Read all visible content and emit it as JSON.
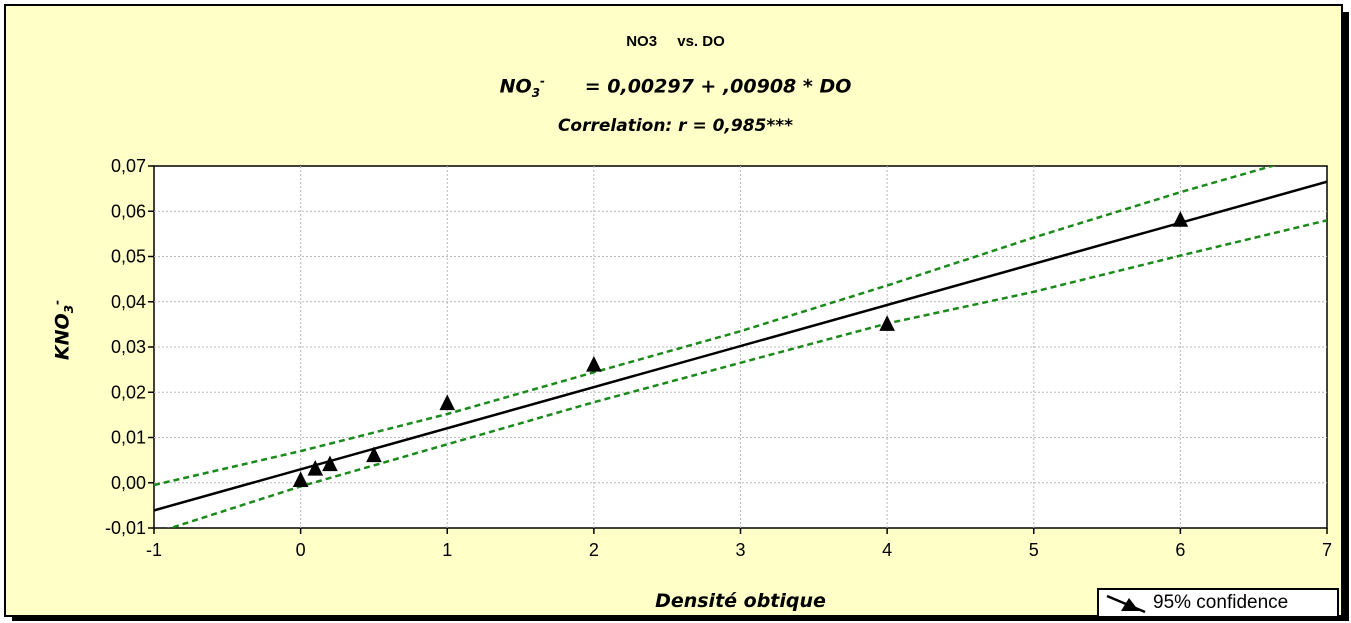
{
  "chart_data": {
    "type": "scatter",
    "title_parts": [
      "NO3",
      "vs. DO"
    ],
    "equation": {
      "lhs": "NO",
      "lhs_sub": "3",
      "lhs_sup": "-",
      "rhs": "= 0,00297 + ,00908 * DO"
    },
    "correlation": "Correlation: r = 0,985***",
    "xlabel": "Densité obtique",
    "ylabel": {
      "main": "KNO",
      "sub": "3",
      "sup": "-"
    },
    "xlim": [
      -1,
      7
    ],
    "ylim": [
      -0.01,
      0.07
    ],
    "x_ticks": [
      "-1",
      "0",
      "1",
      "2",
      "3",
      "4",
      "5",
      "6",
      "7"
    ],
    "y_ticks": [
      "-0,01",
      "0,00",
      "0,01",
      "0,02",
      "0,03",
      "0,04",
      "0,05",
      "0,06",
      "0,07"
    ],
    "grid": true,
    "points": [
      {
        "x": 0,
        "y": 0.0005
      },
      {
        "x": 0.1,
        "y": 0.003
      },
      {
        "x": 0.2,
        "y": 0.004
      },
      {
        "x": 0.5,
        "y": 0.006
      },
      {
        "x": 1,
        "y": 0.0175
      },
      {
        "x": 2,
        "y": 0.026
      },
      {
        "x": 4,
        "y": 0.035
      },
      {
        "x": 6,
        "y": 0.058
      }
    ],
    "regression": {
      "intercept": 0.00297,
      "slope": 0.00908
    },
    "confidence_band": {
      "x": [
        -1,
        0,
        1,
        2,
        3,
        4,
        5,
        6,
        7
      ],
      "upper": [
        -0.0005,
        0.007,
        0.0152,
        0.0244,
        0.0335,
        0.0436,
        0.0542,
        0.0642,
        0.0735
      ],
      "lower": [
        -0.0112,
        -0.0008,
        0.0085,
        0.0178,
        0.0265,
        0.0352,
        0.0422,
        0.0502,
        0.058
      ]
    },
    "colors": {
      "background": "#ffffc8",
      "plot": "#ffffff",
      "line": "#000000",
      "band": "#1a8a1a",
      "marker": "#000000"
    },
    "legend": {
      "label": "95% confidence",
      "placement": "bottom-right"
    }
  }
}
